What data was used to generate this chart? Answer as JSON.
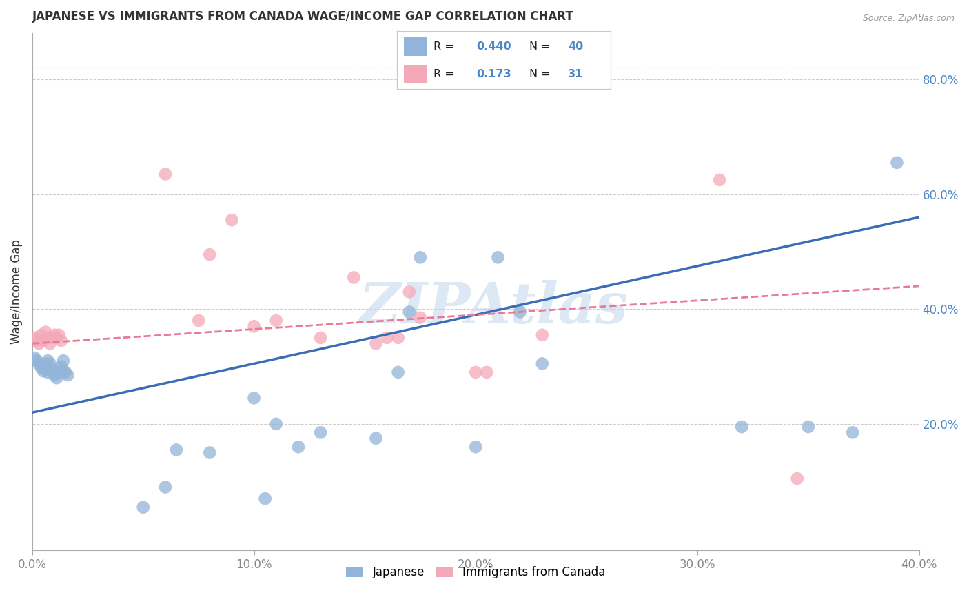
{
  "title": "JAPANESE VS IMMIGRANTS FROM CANADA WAGE/INCOME GAP CORRELATION CHART",
  "source": "Source: ZipAtlas.com",
  "ylabel": "Wage/Income Gap",
  "xlim": [
    0.0,
    0.4
  ],
  "ylim": [
    -0.02,
    0.88
  ],
  "xticks": [
    0.0,
    0.1,
    0.2,
    0.3,
    0.4
  ],
  "xtick_labels": [
    "0.0%",
    "10.0%",
    "20.0%",
    "30.0%",
    "40.0%"
  ],
  "yticks_right": [
    0.2,
    0.4,
    0.6,
    0.8
  ],
  "ytick_labels_right": [
    "20.0%",
    "40.0%",
    "60.0%",
    "80.0%"
  ],
  "blue_R": "0.440",
  "blue_N": "40",
  "pink_R": "0.173",
  "pink_N": "31",
  "blue_color": "#92B4D8",
  "pink_color": "#F4A9B8",
  "blue_line_color": "#3A6DB5",
  "pink_line_color": "#E87A96",
  "legend_label_blue": "Japanese",
  "legend_label_pink": "Immigrants from Canada",
  "watermark": "ZIPAtlas",
  "watermark_color": "#C5D9EE",
  "blue_x": [
    0.001,
    0.002,
    0.003,
    0.004,
    0.005,
    0.006,
    0.006,
    0.007,
    0.007,
    0.008,
    0.009,
    0.01,
    0.011,
    0.012,
    0.013,
    0.014,
    0.014,
    0.015,
    0.016,
    0.05,
    0.06,
    0.065,
    0.08,
    0.1,
    0.105,
    0.11,
    0.12,
    0.13,
    0.155,
    0.165,
    0.17,
    0.175,
    0.2,
    0.21,
    0.22,
    0.23,
    0.32,
    0.35,
    0.37,
    0.39
  ],
  "blue_y": [
    0.315,
    0.31,
    0.305,
    0.298,
    0.292,
    0.305,
    0.295,
    0.29,
    0.31,
    0.305,
    0.295,
    0.285,
    0.28,
    0.29,
    0.3,
    0.292,
    0.31,
    0.29,
    0.285,
    0.055,
    0.09,
    0.155,
    0.15,
    0.245,
    0.07,
    0.2,
    0.16,
    0.185,
    0.175,
    0.29,
    0.395,
    0.49,
    0.16,
    0.49,
    0.395,
    0.305,
    0.195,
    0.195,
    0.185,
    0.655
  ],
  "pink_x": [
    0.001,
    0.002,
    0.003,
    0.004,
    0.005,
    0.006,
    0.007,
    0.008,
    0.009,
    0.01,
    0.011,
    0.012,
    0.013,
    0.06,
    0.075,
    0.08,
    0.09,
    0.1,
    0.11,
    0.13,
    0.145,
    0.155,
    0.16,
    0.165,
    0.17,
    0.175,
    0.2,
    0.205,
    0.23,
    0.31,
    0.345
  ],
  "pink_y": [
    0.35,
    0.345,
    0.34,
    0.355,
    0.345,
    0.36,
    0.35,
    0.34,
    0.35,
    0.355,
    0.35,
    0.355,
    0.345,
    0.635,
    0.38,
    0.495,
    0.555,
    0.37,
    0.38,
    0.35,
    0.455,
    0.34,
    0.35,
    0.35,
    0.43,
    0.385,
    0.29,
    0.29,
    0.355,
    0.625,
    0.105
  ],
  "blue_intercept": 0.22,
  "blue_slope": 0.85,
  "pink_intercept": 0.34,
  "pink_slope": 0.25,
  "background_color": "#FFFFFF",
  "grid_color": "#CCCCCC",
  "axis_color": "#AAAAAA",
  "title_color": "#333333",
  "right_axis_color": "#4A86C8",
  "bottom_axis_color": "#888888",
  "text_color_dark": "#222222",
  "legend_box_color": "#F0F0F8"
}
